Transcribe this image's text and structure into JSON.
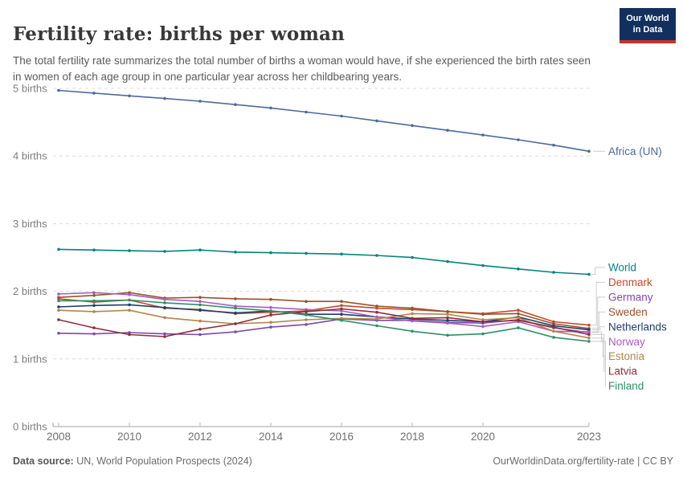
{
  "header": {
    "title": "Fertility rate: births per woman",
    "subtitle": "The total fertility rate summarizes the total number of births a woman would have, if she experienced the birth rates seen in women of each age group in one particular year across her childbearing years.",
    "logo": {
      "line1": "Our World",
      "line2": "in Data",
      "bg_color": "#12305e",
      "accent_color": "#c8332b"
    }
  },
  "chart_data": {
    "type": "line",
    "title": "Fertility rate: births per woman",
    "x": [
      2008,
      2009,
      2010,
      2011,
      2012,
      2013,
      2014,
      2015,
      2016,
      2017,
      2018,
      2019,
      2020,
      2021,
      2022,
      2023
    ],
    "x_tick_labels": [
      "2008",
      "2010",
      "2012",
      "2014",
      "2016",
      "2018",
      "2020",
      "2023"
    ],
    "y_ticks": [
      0,
      1,
      2,
      3,
      4,
      5
    ],
    "y_tick_labels": [
      "0 births",
      "1 births",
      "2 births",
      "3 births",
      "4 births",
      "5 births"
    ],
    "ylim": [
      0,
      5
    ],
    "xlim": [
      2008,
      2023
    ],
    "grid": "dashed-horizontal",
    "legend_position": "right-of-line-endpoints",
    "series": [
      {
        "name": "Africa (UN)",
        "color": "#4C6A9C",
        "values": [
          4.97,
          4.93,
          4.89,
          4.85,
          4.81,
          4.76,
          4.71,
          4.65,
          4.59,
          4.52,
          4.45,
          4.38,
          4.31,
          4.24,
          4.16,
          4.07
        ]
      },
      {
        "name": "World",
        "color": "#00847E",
        "values": [
          2.62,
          2.61,
          2.6,
          2.59,
          2.61,
          2.58,
          2.57,
          2.56,
          2.55,
          2.53,
          2.5,
          2.44,
          2.38,
          2.33,
          2.28,
          2.25
        ]
      },
      {
        "name": "Denmark",
        "color": "#C14A2C",
        "values": [
          1.89,
          1.84,
          1.87,
          1.75,
          1.73,
          1.67,
          1.69,
          1.71,
          1.79,
          1.75,
          1.73,
          1.7,
          1.67,
          1.72,
          1.55,
          1.5
        ]
      },
      {
        "name": "Germany",
        "color": "#7E49AB",
        "values": [
          1.38,
          1.37,
          1.39,
          1.37,
          1.36,
          1.4,
          1.47,
          1.51,
          1.59,
          1.57,
          1.57,
          1.54,
          1.53,
          1.58,
          1.46,
          1.39
        ]
      },
      {
        "name": "Sweden",
        "color": "#9A5129",
        "values": [
          1.91,
          1.94,
          1.98,
          1.9,
          1.91,
          1.89,
          1.88,
          1.85,
          1.85,
          1.78,
          1.75,
          1.7,
          1.66,
          1.67,
          1.52,
          1.45
        ]
      },
      {
        "name": "Netherlands",
        "color": "#1D3E6E",
        "values": [
          1.77,
          1.79,
          1.8,
          1.76,
          1.72,
          1.68,
          1.71,
          1.66,
          1.66,
          1.62,
          1.59,
          1.57,
          1.55,
          1.62,
          1.49,
          1.43
        ]
      },
      {
        "name": "Norway",
        "color": "#A95CBF",
        "values": [
          1.96,
          1.98,
          1.95,
          1.88,
          1.85,
          1.78,
          1.76,
          1.73,
          1.71,
          1.62,
          1.56,
          1.53,
          1.48,
          1.55,
          1.41,
          1.4
        ]
      },
      {
        "name": "Estonia",
        "color": "#B5854B",
        "values": [
          1.72,
          1.7,
          1.72,
          1.61,
          1.56,
          1.52,
          1.54,
          1.58,
          1.6,
          1.59,
          1.67,
          1.66,
          1.58,
          1.61,
          1.41,
          1.31
        ]
      },
      {
        "name": "Latvia",
        "color": "#8C2F39",
        "values": [
          1.58,
          1.46,
          1.36,
          1.33,
          1.44,
          1.52,
          1.65,
          1.7,
          1.74,
          1.69,
          1.6,
          1.61,
          1.55,
          1.57,
          1.47,
          1.36
        ]
      },
      {
        "name": "Finland",
        "color": "#2F8F68",
        "values": [
          1.86,
          1.86,
          1.87,
          1.83,
          1.8,
          1.75,
          1.71,
          1.65,
          1.57,
          1.49,
          1.41,
          1.35,
          1.37,
          1.46,
          1.32,
          1.26
        ]
      }
    ]
  },
  "footer": {
    "source_label": "Data source:",
    "source_value": " UN, World Population Prospects (2024)",
    "link": "OurWorldinData.org/fertility-rate | CC BY"
  }
}
